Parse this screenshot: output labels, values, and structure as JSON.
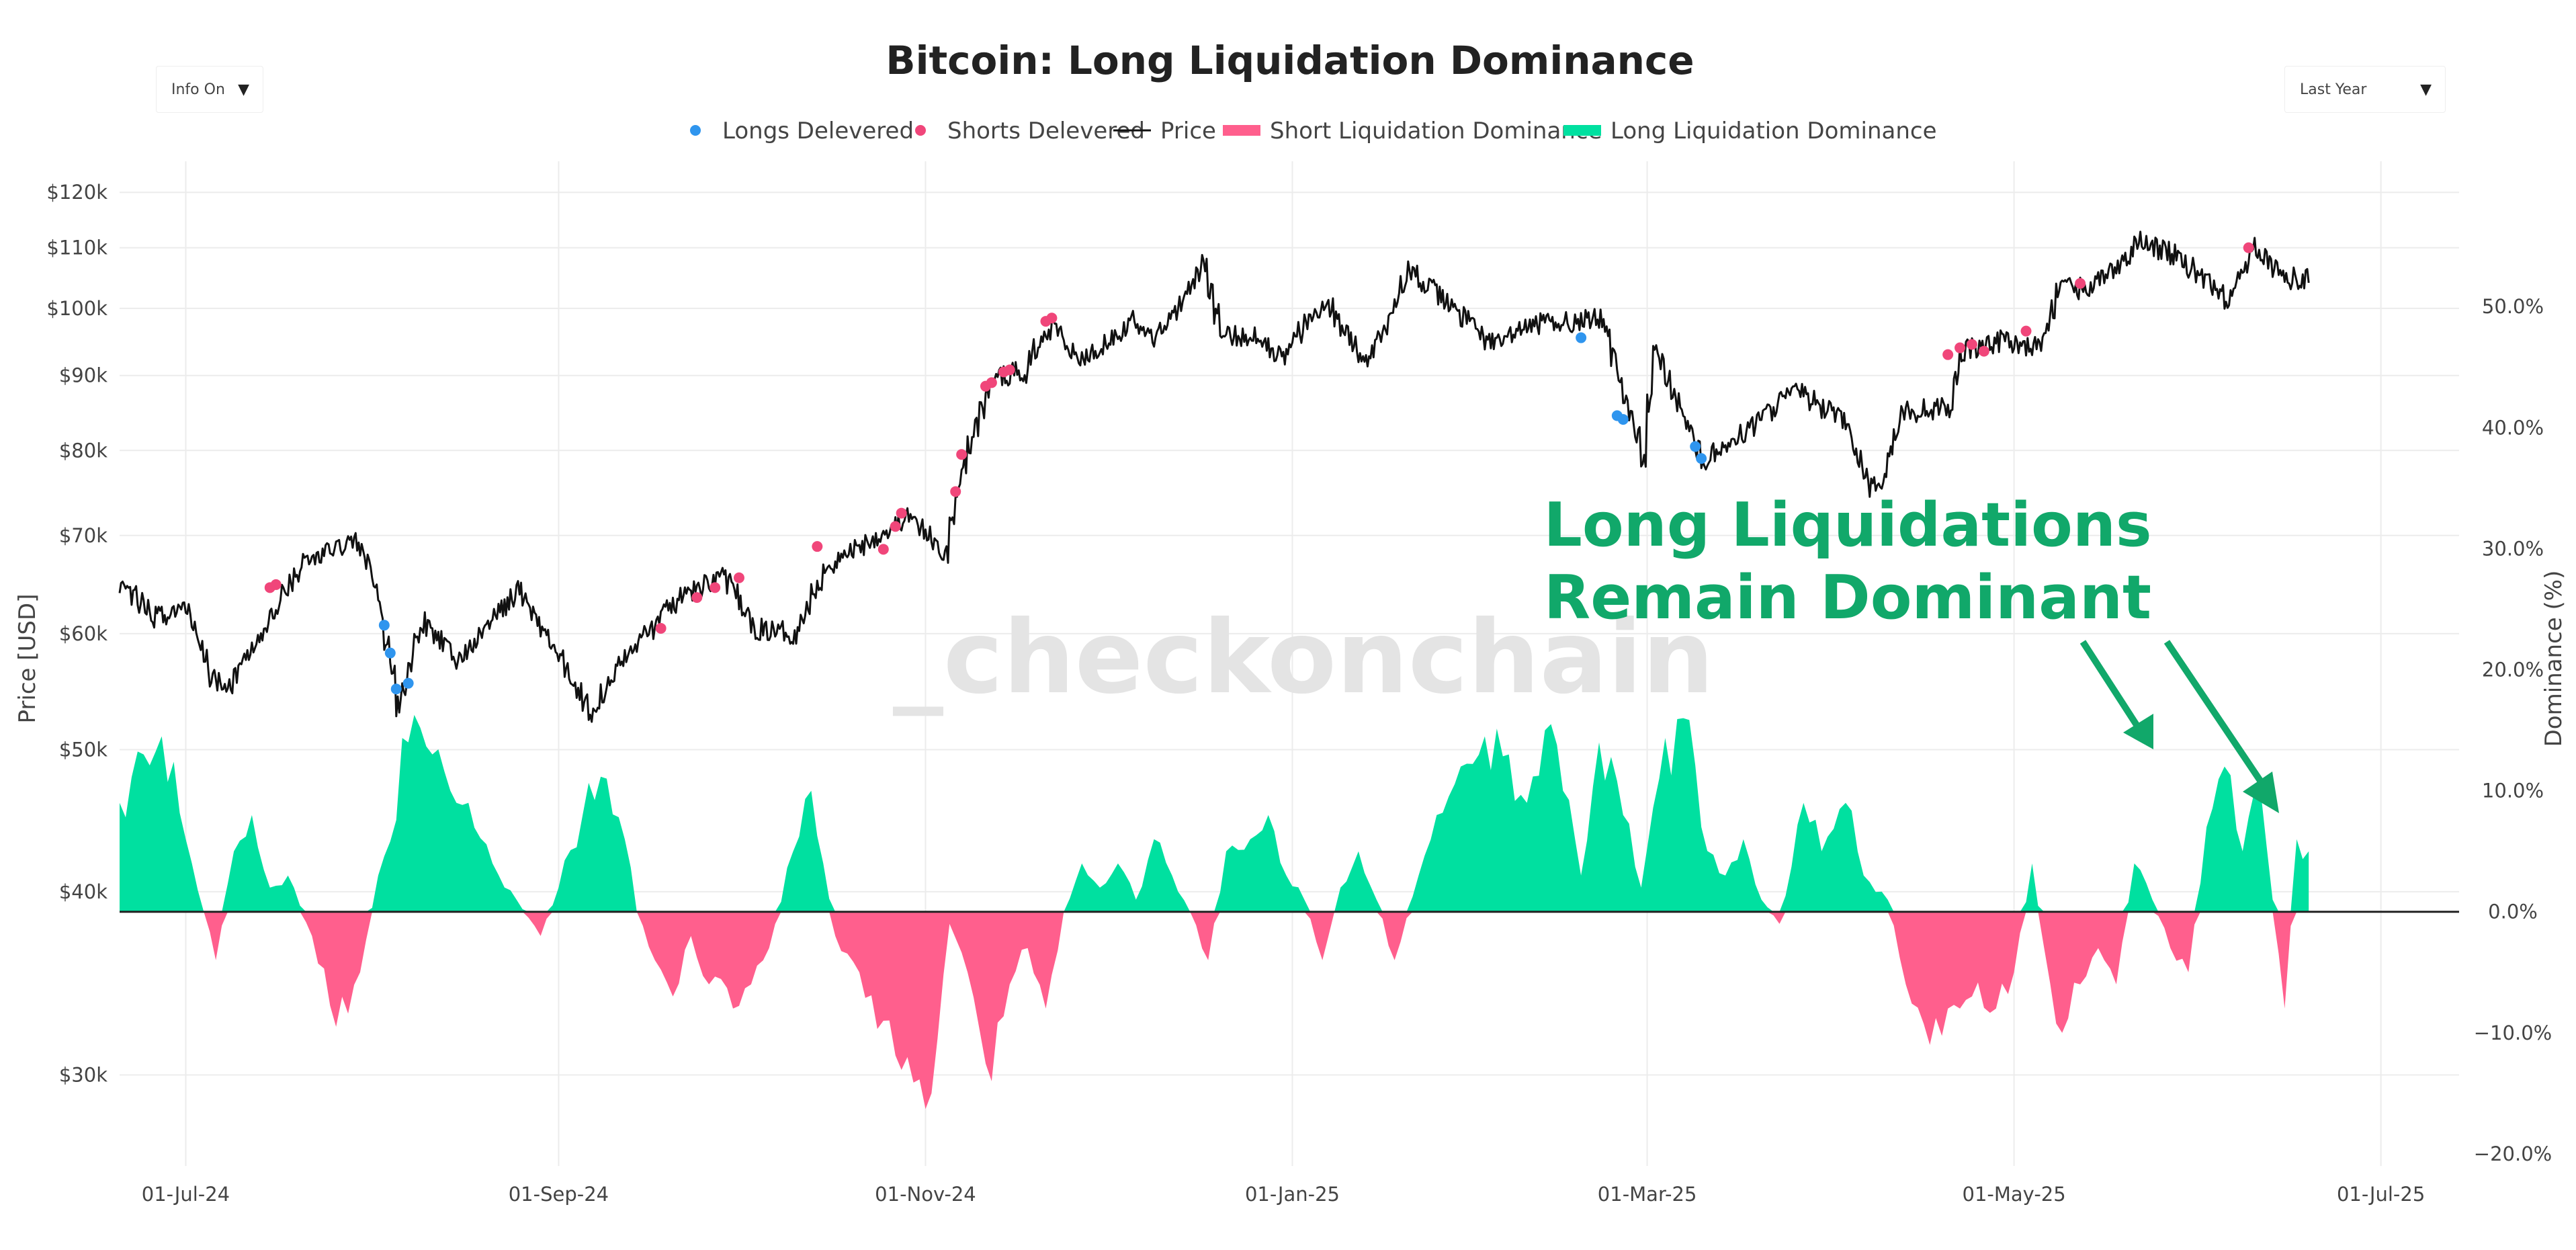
{
  "chart_data": {
    "type": "line",
    "title": "Bitcoin: Long Liquidation Dominance",
    "watermark": "_checkonchain",
    "ylabel": "Price [USD]",
    "y2label": "Dominance (%)",
    "yscale": "log",
    "ylim": [
      26000,
      126000
    ],
    "y2lim": [
      -21,
      62
    ],
    "x_start": "2024-06-20",
    "x_end": "2025-07-14",
    "x_ticks": [
      {
        "date": "2024-07-01",
        "label": "01-Jul-24"
      },
      {
        "date": "2024-09-01",
        "label": "01-Sep-24"
      },
      {
        "date": "2024-11-01",
        "label": "01-Nov-24"
      },
      {
        "date": "2025-01-01",
        "label": "01-Jan-25"
      },
      {
        "date": "2025-03-01",
        "label": "01-Mar-25"
      },
      {
        "date": "2025-05-01",
        "label": "01-May-25"
      },
      {
        "date": "2025-07-01",
        "label": "01-Jul-25"
      }
    ],
    "y_ticks": [
      {
        "value": 30000,
        "label": "$30k"
      },
      {
        "value": 40000,
        "label": "$40k"
      },
      {
        "value": 50000,
        "label": "$50k"
      },
      {
        "value": 60000,
        "label": "$60k"
      },
      {
        "value": 70000,
        "label": "$70k"
      },
      {
        "value": 80000,
        "label": "$80k"
      },
      {
        "value": 90000,
        "label": "$90k"
      },
      {
        "value": 100000,
        "label": "$100k"
      },
      {
        "value": 110000,
        "label": "$110k"
      },
      {
        "value": 120000,
        "label": "$120k"
      }
    ],
    "y2_ticks": [
      {
        "value": -20,
        "label": "−20.0%"
      },
      {
        "value": -10,
        "label": "−10.0%"
      },
      {
        "value": 0,
        "label": "0.0%"
      },
      {
        "value": 10,
        "label": "10.0%"
      },
      {
        "value": 20,
        "label": "20.0%"
      },
      {
        "value": 30,
        "label": "30.0%"
      },
      {
        "value": 40,
        "label": "40.0%"
      },
      {
        "value": 50,
        "label": "50.0%"
      }
    ],
    "legend": [
      {
        "label": "Longs Delevered",
        "kind": "dot",
        "color": "#2f95ee"
      },
      {
        "label": "Shorts Delevered",
        "kind": "dot",
        "color": "#f0467a"
      },
      {
        "label": "Price",
        "kind": "line",
        "color": "#111111"
      },
      {
        "label": "Short Liquidation Dominance",
        "kind": "bar",
        "color": "#ff5f8d"
      },
      {
        "label": "Long Liquidation Dominance",
        "kind": "bar",
        "color": "#00e0a0"
      }
    ],
    "price_series": [
      {
        "x": "2024-06-20",
        "y": 65000
      },
      {
        "x": "2024-06-25",
        "y": 61500
      },
      {
        "x": "2024-07-01",
        "y": 62500
      },
      {
        "x": "2024-07-05",
        "y": 56000
      },
      {
        "x": "2024-07-08",
        "y": 55500
      },
      {
        "x": "2024-07-14",
        "y": 60500
      },
      {
        "x": "2024-07-20",
        "y": 67000
      },
      {
        "x": "2024-07-29",
        "y": 69500
      },
      {
        "x": "2024-08-01",
        "y": 65500
      },
      {
        "x": "2024-08-05",
        "y": 53500
      },
      {
        "x": "2024-08-09",
        "y": 61000
      },
      {
        "x": "2024-08-15",
        "y": 57500
      },
      {
        "x": "2024-08-25",
        "y": 64200
      },
      {
        "x": "2024-09-01",
        "y": 57500
      },
      {
        "x": "2024-09-06",
        "y": 53000
      },
      {
        "x": "2024-09-12",
        "y": 58000
      },
      {
        "x": "2024-09-20",
        "y": 63000
      },
      {
        "x": "2024-09-28",
        "y": 66000
      },
      {
        "x": "2024-10-03",
        "y": 60500
      },
      {
        "x": "2024-10-10",
        "y": 60000
      },
      {
        "x": "2024-10-15",
        "y": 66500
      },
      {
        "x": "2024-10-21",
        "y": 69000
      },
      {
        "x": "2024-10-29",
        "y": 72000
      },
      {
        "x": "2024-11-04",
        "y": 67800
      },
      {
        "x": "2024-11-06",
        "y": 75500
      },
      {
        "x": "2024-11-11",
        "y": 88000
      },
      {
        "x": "2024-11-13",
        "y": 90000
      },
      {
        "x": "2024-11-17",
        "y": 90500
      },
      {
        "x": "2024-11-22",
        "y": 98500
      },
      {
        "x": "2024-11-26",
        "y": 92000
      },
      {
        "x": "2024-12-05",
        "y": 98000
      },
      {
        "x": "2024-12-09",
        "y": 95500
      },
      {
        "x": "2024-12-17",
        "y": 107000
      },
      {
        "x": "2024-12-20",
        "y": 95500
      },
      {
        "x": "2024-12-26",
        "y": 96000
      },
      {
        "x": "2024-12-30",
        "y": 92500
      },
      {
        "x": "2025-01-06",
        "y": 101500
      },
      {
        "x": "2025-01-13",
        "y": 91500
      },
      {
        "x": "2025-01-20",
        "y": 106000
      },
      {
        "x": "2025-01-27",
        "y": 100500
      },
      {
        "x": "2025-02-03",
        "y": 94500
      },
      {
        "x": "2025-02-10",
        "y": 97500
      },
      {
        "x": "2025-02-21",
        "y": 98500
      },
      {
        "x": "2025-02-25",
        "y": 87000
      },
      {
        "x": "2025-02-28",
        "y": 79000
      },
      {
        "x": "2025-03-02",
        "y": 93500
      },
      {
        "x": "2025-03-05",
        "y": 88000
      },
      {
        "x": "2025-03-10",
        "y": 78500
      },
      {
        "x": "2025-03-18",
        "y": 83000
      },
      {
        "x": "2025-03-25",
        "y": 88000
      },
      {
        "x": "2025-04-02",
        "y": 84000
      },
      {
        "x": "2025-04-07",
        "y": 75500
      },
      {
        "x": "2025-04-09",
        "y": 76500
      },
      {
        "x": "2025-04-12",
        "y": 85000
      },
      {
        "x": "2025-04-20",
        "y": 85500
      },
      {
        "x": "2025-04-22",
        "y": 93500
      },
      {
        "x": "2025-04-28",
        "y": 95000
      },
      {
        "x": "2025-05-05",
        "y": 94000
      },
      {
        "x": "2025-05-08",
        "y": 103000
      },
      {
        "x": "2025-05-14",
        "y": 103500
      },
      {
        "x": "2025-05-22",
        "y": 111000
      },
      {
        "x": "2025-05-27",
        "y": 109000
      },
      {
        "x": "2025-06-05",
        "y": 101500
      },
      {
        "x": "2025-06-10",
        "y": 110000
      },
      {
        "x": "2025-06-14",
        "y": 105500
      },
      {
        "x": "2025-06-17",
        "y": 104500
      },
      {
        "x": "2025-06-19",
        "y": 104800
      }
    ],
    "longs_delevered": [
      {
        "x": "2024-08-03",
        "y": 60800
      },
      {
        "x": "2024-08-04",
        "y": 58200
      },
      {
        "x": "2024-08-05",
        "y": 55000
      },
      {
        "x": "2024-08-07",
        "y": 55500
      },
      {
        "x": "2025-02-18",
        "y": 95500
      },
      {
        "x": "2025-02-24",
        "y": 84500
      },
      {
        "x": "2025-02-25",
        "y": 84000
      },
      {
        "x": "2025-03-09",
        "y": 80500
      },
      {
        "x": "2025-03-10",
        "y": 79000
      }
    ],
    "shorts_delevered": [
      {
        "x": "2024-07-15",
        "y": 64500
      },
      {
        "x": "2024-07-16",
        "y": 64800
      },
      {
        "x": "2024-09-18",
        "y": 60500
      },
      {
        "x": "2024-09-24",
        "y": 63500
      },
      {
        "x": "2024-09-27",
        "y": 64500
      },
      {
        "x": "2024-10-01",
        "y": 65500
      },
      {
        "x": "2024-10-14",
        "y": 68800
      },
      {
        "x": "2024-10-25",
        "y": 68500
      },
      {
        "x": "2024-10-27",
        "y": 71000
      },
      {
        "x": "2024-10-28",
        "y": 72500
      },
      {
        "x": "2024-11-06",
        "y": 75000
      },
      {
        "x": "2024-11-07",
        "y": 79500
      },
      {
        "x": "2024-11-11",
        "y": 88500
      },
      {
        "x": "2024-11-12",
        "y": 89000
      },
      {
        "x": "2024-11-14",
        "y": 90500
      },
      {
        "x": "2024-11-15",
        "y": 90800
      },
      {
        "x": "2024-11-21",
        "y": 98000
      },
      {
        "x": "2024-11-22",
        "y": 98500
      },
      {
        "x": "2025-04-20",
        "y": 93000
      },
      {
        "x": "2025-04-22",
        "y": 94000
      },
      {
        "x": "2025-04-24",
        "y": 94500
      },
      {
        "x": "2025-04-26",
        "y": 93500
      },
      {
        "x": "2025-05-03",
        "y": 96500
      },
      {
        "x": "2025-05-12",
        "y": 104000
      },
      {
        "x": "2025-06-09",
        "y": 110000
      }
    ],
    "dominance_series": [
      {
        "x": "2024-06-20",
        "y": 9
      },
      {
        "x": "2024-06-24",
        "y": 13
      },
      {
        "x": "2024-06-27",
        "y": 14.5
      },
      {
        "x": "2024-07-01",
        "y": 6
      },
      {
        "x": "2024-07-04",
        "y": 0
      },
      {
        "x": "2024-07-06",
        "y": -4
      },
      {
        "x": "2024-07-09",
        "y": 5
      },
      {
        "x": "2024-07-12",
        "y": 8
      },
      {
        "x": "2024-07-15",
        "y": 2
      },
      {
        "x": "2024-07-18",
        "y": 3
      },
      {
        "x": "2024-07-22",
        "y": -2
      },
      {
        "x": "2024-07-26",
        "y": -9.5
      },
      {
        "x": "2024-07-30",
        "y": -5
      },
      {
        "x": "2024-08-02",
        "y": 3
      },
      {
        "x": "2024-08-07",
        "y": 14
      },
      {
        "x": "2024-08-11",
        "y": 13
      },
      {
        "x": "2024-08-14",
        "y": 10
      },
      {
        "x": "2024-08-17",
        "y": 9
      },
      {
        "x": "2024-08-21",
        "y": 4
      },
      {
        "x": "2024-08-25",
        "y": 1
      },
      {
        "x": "2024-08-29",
        "y": -2
      },
      {
        "x": "2024-09-01",
        "y": 2
      },
      {
        "x": "2024-09-05",
        "y": 8
      },
      {
        "x": "2024-09-09",
        "y": 11
      },
      {
        "x": "2024-09-12",
        "y": 6
      },
      {
        "x": "2024-09-14",
        "y": 0
      },
      {
        "x": "2024-09-17",
        "y": -4
      },
      {
        "x": "2024-09-20",
        "y": -7
      },
      {
        "x": "2024-09-23",
        "y": -2
      },
      {
        "x": "2024-09-26",
        "y": -6
      },
      {
        "x": "2024-09-30",
        "y": -8
      },
      {
        "x": "2024-10-03",
        "y": -6
      },
      {
        "x": "2024-10-06",
        "y": -3
      },
      {
        "x": "2024-10-10",
        "y": 5
      },
      {
        "x": "2024-10-13",
        "y": 10
      },
      {
        "x": "2024-10-15",
        "y": 4
      },
      {
        "x": "2024-10-17",
        "y": -2
      },
      {
        "x": "2024-10-21",
        "y": -5
      },
      {
        "x": "2024-10-25",
        "y": -9
      },
      {
        "x": "2024-10-29",
        "y": -12
      },
      {
        "x": "2024-11-02",
        "y": -15
      },
      {
        "x": "2024-11-05",
        "y": -1
      },
      {
        "x": "2024-11-08",
        "y": -5
      },
      {
        "x": "2024-11-12",
        "y": -14
      },
      {
        "x": "2024-11-15",
        "y": -6
      },
      {
        "x": "2024-11-18",
        "y": -3
      },
      {
        "x": "2024-11-21",
        "y": -8
      },
      {
        "x": "2024-11-24",
        "y": 0
      },
      {
        "x": "2024-11-27",
        "y": 4
      },
      {
        "x": "2024-11-30",
        "y": 2
      },
      {
        "x": "2024-12-03",
        "y": 4
      },
      {
        "x": "2024-12-06",
        "y": 1
      },
      {
        "x": "2024-12-09",
        "y": 6
      },
      {
        "x": "2024-12-12",
        "y": 3
      },
      {
        "x": "2024-12-15",
        "y": 0
      },
      {
        "x": "2024-12-18",
        "y": -4
      },
      {
        "x": "2024-12-21",
        "y": 5
      },
      {
        "x": "2024-12-25",
        "y": 6
      },
      {
        "x": "2024-12-28",
        "y": 8
      },
      {
        "x": "2024-12-31",
        "y": 3
      },
      {
        "x": "2025-01-03",
        "y": 1
      },
      {
        "x": "2025-01-06",
        "y": -4
      },
      {
        "x": "2025-01-09",
        "y": 2
      },
      {
        "x": "2025-01-12",
        "y": 5
      },
      {
        "x": "2025-01-15",
        "y": 1
      },
      {
        "x": "2025-01-18",
        "y": -4
      },
      {
        "x": "2025-01-22",
        "y": 3
      },
      {
        "x": "2025-01-25",
        "y": 8
      },
      {
        "x": "2025-01-29",
        "y": 12
      },
      {
        "x": "2025-02-02",
        "y": 14.5
      },
      {
        "x": "2025-02-06",
        "y": 13
      },
      {
        "x": "2025-02-09",
        "y": 9
      },
      {
        "x": "2025-02-12",
        "y": 15
      },
      {
        "x": "2025-02-15",
        "y": 10
      },
      {
        "x": "2025-02-18",
        "y": 3
      },
      {
        "x": "2025-02-21",
        "y": 14
      },
      {
        "x": "2025-02-25",
        "y": 8
      },
      {
        "x": "2025-02-28",
        "y": 2
      },
      {
        "x": "2025-03-03",
        "y": 11
      },
      {
        "x": "2025-03-07",
        "y": 16
      },
      {
        "x": "2025-03-10",
        "y": 7
      },
      {
        "x": "2025-03-14",
        "y": 3
      },
      {
        "x": "2025-03-17",
        "y": 6
      },
      {
        "x": "2025-03-20",
        "y": 1
      },
      {
        "x": "2025-03-23",
        "y": -1
      },
      {
        "x": "2025-03-27",
        "y": 9
      },
      {
        "x": "2025-03-30",
        "y": 5
      },
      {
        "x": "2025-04-03",
        "y": 9
      },
      {
        "x": "2025-04-06",
        "y": 3
      },
      {
        "x": "2025-04-10",
        "y": 1
      },
      {
        "x": "2025-04-13",
        "y": -6
      },
      {
        "x": "2025-04-17",
        "y": -11
      },
      {
        "x": "2025-04-20",
        "y": -8
      },
      {
        "x": "2025-04-24",
        "y": -7
      },
      {
        "x": "2025-04-28",
        "y": -8
      },
      {
        "x": "2025-05-01",
        "y": -5
      },
      {
        "x": "2025-05-04",
        "y": 4
      },
      {
        "x": "2025-05-06",
        "y": -3
      },
      {
        "x": "2025-05-09",
        "y": -10
      },
      {
        "x": "2025-05-12",
        "y": -6
      },
      {
        "x": "2025-05-15",
        "y": -3
      },
      {
        "x": "2025-05-18",
        "y": -6
      },
      {
        "x": "2025-05-21",
        "y": 4
      },
      {
        "x": "2025-05-24",
        "y": 1
      },
      {
        "x": "2025-05-27",
        "y": -3
      },
      {
        "x": "2025-05-30",
        "y": -5
      },
      {
        "x": "2025-06-02",
        "y": 7
      },
      {
        "x": "2025-06-05",
        "y": 12
      },
      {
        "x": "2025-06-08",
        "y": 5
      },
      {
        "x": "2025-06-11",
        "y": 10
      },
      {
        "x": "2025-06-13",
        "y": 1
      },
      {
        "x": "2025-06-15",
        "y": -8
      },
      {
        "x": "2025-06-17",
        "y": 6
      },
      {
        "x": "2025-06-19",
        "y": 5
      }
    ],
    "annotation": {
      "lines": [
        "Long Liquidations",
        "Remain Dominant"
      ],
      "color": "#11a86a"
    }
  },
  "controls": {
    "info_toggle": {
      "label": "Info On",
      "arrow": "▼"
    },
    "range_select": {
      "label": "Last Year",
      "arrow": "▼"
    }
  },
  "colors": {
    "price": "#111111",
    "long_dom": "#00e0a0",
    "short_dom": "#ff5f8d",
    "long_dot": "#2f95ee",
    "short_dot": "#f0467a",
    "grid": "#ececec",
    "zero_line": "#222222"
  }
}
